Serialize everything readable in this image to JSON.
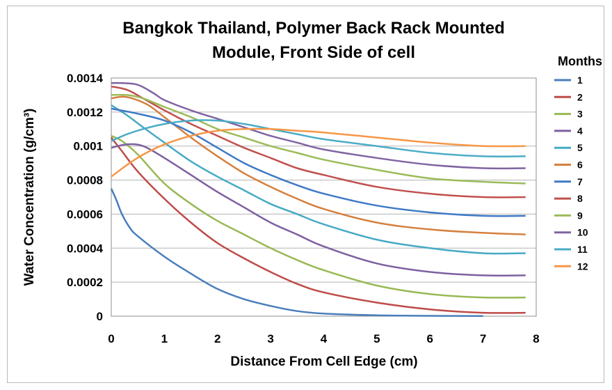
{
  "chart_data": {
    "type": "line",
    "title_line1": "Bangkok Thailand, Polymer Back Rack Mounted",
    "title_line2": "Module, Front Side of cell",
    "xlabel": "Distance From Cell Edge (cm)",
    "ylabel": "Water Concentration  (g/cm³)",
    "xlim": [
      0,
      8
    ],
    "ylim": [
      0,
      0.0014
    ],
    "x_ticks": [
      "0",
      "1",
      "2",
      "3",
      "4",
      "5",
      "6",
      "7",
      "8"
    ],
    "y_ticks": [
      "0",
      "0.0002",
      "0.0004",
      "0.0006",
      "0.0008",
      "0.001",
      "0.0012",
      "0.0014"
    ],
    "grid": "horizontal",
    "legend": {
      "title": "Months",
      "position": "right"
    },
    "series": [
      {
        "name": "1",
        "color": "#4a7ebb",
        "x": [
          0,
          0.1,
          0.2,
          0.35,
          0.5,
          1.0,
          1.5,
          2.0,
          2.5,
          3.0,
          3.5,
          4.0,
          5.0,
          6.0,
          7.0
        ],
        "y": [
          0.00075,
          0.00068,
          0.0006,
          0.00052,
          0.00047,
          0.00035,
          0.00025,
          0.00016,
          0.0001,
          6e-05,
          3e-05,
          1.5e-05,
          5e-06,
          2e-06,
          1e-06
        ]
      },
      {
        "name": "2",
        "color": "#be4b48",
        "x": [
          0,
          0.2,
          0.5,
          1.0,
          1.5,
          2.0,
          2.5,
          3.0,
          3.5,
          4.0,
          5.0,
          6.0,
          7.0,
          7.8
        ],
        "y": [
          0.00105,
          0.00097,
          0.00085,
          0.00069,
          0.00055,
          0.00043,
          0.00034,
          0.00026,
          0.00019,
          0.00014,
          8e-05,
          4e-05,
          2e-05,
          2e-05
        ]
      },
      {
        "name": "3",
        "color": "#98b954",
        "x": [
          0,
          0.2,
          0.5,
          1.0,
          1.5,
          2.0,
          2.5,
          3.0,
          3.5,
          4.0,
          5.0,
          6.0,
          7.0,
          7.8
        ],
        "y": [
          0.00106,
          0.00103,
          0.00095,
          0.00078,
          0.00066,
          0.00056,
          0.00048,
          0.0004,
          0.00033,
          0.00027,
          0.00018,
          0.00013,
          0.00011,
          0.00011
        ]
      },
      {
        "name": "4",
        "color": "#7d60a0",
        "x": [
          0,
          0.3,
          0.6,
          1.0,
          1.5,
          2.0,
          2.5,
          3.0,
          3.5,
          4.0,
          5.0,
          6.0,
          7.0,
          7.8
        ],
        "y": [
          0.00099,
          0.00101,
          0.001,
          0.00093,
          0.00083,
          0.00073,
          0.00064,
          0.00055,
          0.00048,
          0.00041,
          0.00031,
          0.00026,
          0.00024,
          0.00024
        ]
      },
      {
        "name": "5",
        "color": "#46aac5",
        "x": [
          0,
          0.3,
          0.6,
          1.0,
          1.5,
          2.0,
          2.5,
          3.0,
          3.5,
          4.0,
          5.0,
          6.0,
          7.0,
          7.8
        ],
        "y": [
          0.00124,
          0.00118,
          0.00111,
          0.00102,
          0.00091,
          0.00082,
          0.00074,
          0.00066,
          0.0006,
          0.00054,
          0.00045,
          0.0004,
          0.00037,
          0.00037
        ]
      },
      {
        "name": "6",
        "color": "#d5803e",
        "x": [
          0,
          0.2,
          0.4,
          0.7,
          1.0,
          1.5,
          2.0,
          2.5,
          3.0,
          3.5,
          4.0,
          5.0,
          6.0,
          7.0,
          7.8
        ],
        "y": [
          0.00128,
          0.00129,
          0.00128,
          0.00124,
          0.00117,
          0.00105,
          0.00094,
          0.00084,
          0.00076,
          0.00069,
          0.00063,
          0.00055,
          0.00051,
          0.00049,
          0.00048
        ]
      },
      {
        "name": "7",
        "color": "#3f79c6",
        "x": [
          0,
          0.5,
          1.0,
          1.5,
          2.0,
          2.5,
          3.0,
          3.5,
          4.0,
          5.0,
          6.0,
          7.0,
          7.8
        ],
        "y": [
          0.00122,
          0.00119,
          0.00115,
          0.00108,
          0.00099,
          0.0009,
          0.00083,
          0.00077,
          0.00072,
          0.00065,
          0.00061,
          0.00059,
          0.00059
        ]
      },
      {
        "name": "8",
        "color": "#c0504d",
        "x": [
          0,
          0.3,
          0.6,
          1.0,
          1.5,
          2.0,
          2.5,
          3.0,
          3.5,
          4.0,
          5.0,
          6.0,
          7.0,
          7.8
        ],
        "y": [
          0.00135,
          0.00133,
          0.00128,
          0.00121,
          0.00113,
          0.00106,
          0.00099,
          0.00093,
          0.00087,
          0.00083,
          0.00076,
          0.00072,
          0.0007,
          0.0007
        ]
      },
      {
        "name": "9",
        "color": "#9bbb59",
        "x": [
          0,
          0.3,
          0.6,
          1.0,
          1.5,
          2.0,
          2.5,
          3.0,
          3.5,
          4.0,
          5.0,
          6.0,
          7.0,
          7.8
        ],
        "y": [
          0.0013,
          0.0013,
          0.00128,
          0.00123,
          0.00117,
          0.0011,
          0.00105,
          0.001,
          0.00096,
          0.00092,
          0.00086,
          0.00081,
          0.00079,
          0.00078
        ]
      },
      {
        "name": "10",
        "color": "#8064a2",
        "x": [
          0,
          0.2,
          0.5,
          0.8,
          1.0,
          1.5,
          2.0,
          2.5,
          3.0,
          3.5,
          4.0,
          5.0,
          6.0,
          7.0,
          7.8
        ],
        "y": [
          0.00137,
          0.00137,
          0.00136,
          0.00131,
          0.00127,
          0.00121,
          0.00116,
          0.00111,
          0.00106,
          0.00102,
          0.00098,
          0.00093,
          0.00089,
          0.00087,
          0.00087
        ]
      },
      {
        "name": "11",
        "color": "#4bacc6",
        "x": [
          0,
          0.3,
          0.6,
          1.0,
          1.5,
          2.0,
          2.5,
          3.0,
          3.5,
          4.0,
          5.0,
          6.0,
          7.0,
          7.8
        ],
        "y": [
          0.00103,
          0.00107,
          0.0011,
          0.00113,
          0.00115,
          0.00115,
          0.00113,
          0.0011,
          0.00107,
          0.00104,
          0.001,
          0.00096,
          0.00094,
          0.00094
        ]
      },
      {
        "name": "12",
        "color": "#f79646",
        "x": [
          0,
          0.3,
          0.6,
          1.0,
          1.5,
          2.0,
          2.5,
          3.0,
          3.5,
          4.0,
          5.0,
          6.0,
          7.0,
          7.8
        ],
        "y": [
          0.00082,
          0.00089,
          0.00095,
          0.00101,
          0.00106,
          0.00109,
          0.0011,
          0.0011,
          0.00109,
          0.00108,
          0.00105,
          0.00102,
          0.001,
          0.001
        ]
      }
    ]
  }
}
